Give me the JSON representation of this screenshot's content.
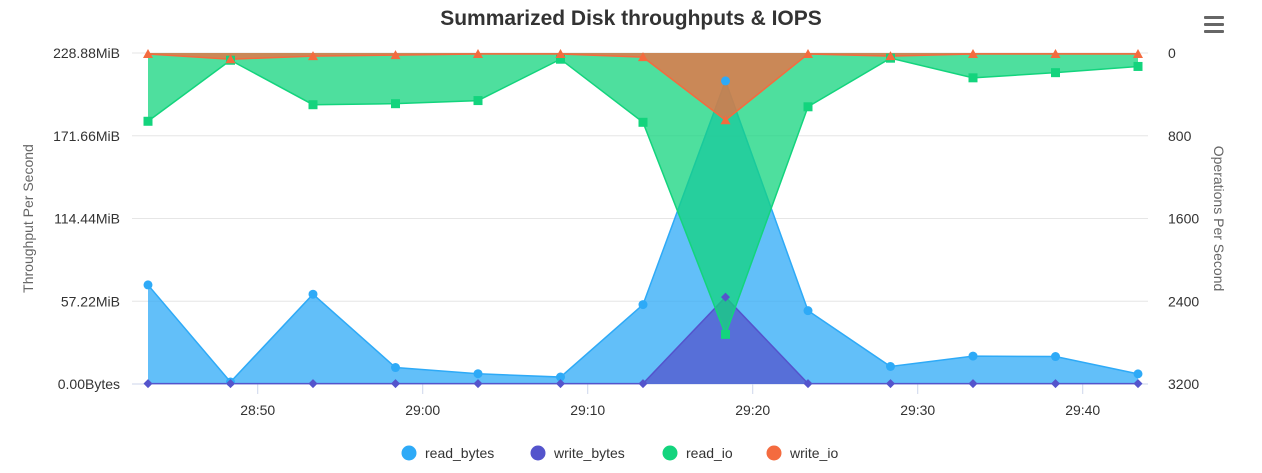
{
  "chart_data": {
    "type": "area",
    "title": "Summarized Disk throughputs & IOPS",
    "y_left_label": "Throughput Per Second",
    "y_right_label": "Operations Per Second",
    "x_labels": [
      "28:50",
      "29:00",
      "29:10",
      "29:20",
      "29:30",
      "29:40"
    ],
    "x_label_positions": [
      1.33,
      3.33,
      5.33,
      7.33,
      9.33,
      11.33
    ],
    "y_left_ticks": [
      "0.00Bytes",
      "57.22MiB",
      "114.44MiB",
      "171.66MiB",
      "228.88MiB"
    ],
    "y_left_range": [
      0,
      228.88
    ],
    "y_right_ticks": [
      "0",
      "800",
      "1600",
      "2400",
      "3200"
    ],
    "y_right_range": [
      0,
      3200
    ],
    "y_right_reversed": true,
    "grid": true,
    "legend_position": "bottom",
    "series": [
      {
        "name": "read_bytes",
        "axis": "left",
        "color": "#2eaaf7",
        "marker": "circle",
        "values": [
          68.5,
          1.4,
          62.1,
          11.4,
          7.1,
          4.8,
          54.9,
          209.6,
          50.7,
          12.1,
          19.3,
          19.0,
          7.0
        ]
      },
      {
        "name": "write_bytes",
        "axis": "left",
        "color": "#5454cc",
        "marker": "diamond",
        "values": [
          0.3,
          0.3,
          0.3,
          0.3,
          0.3,
          0.3,
          0.3,
          60.1,
          0.3,
          0.3,
          0.3,
          0.3,
          0.3
        ]
      },
      {
        "name": "read_io",
        "axis": "right",
        "color": "#13d47d",
        "marker": "square",
        "values": [
          660,
          70,
          500,
          490,
          460,
          60,
          670,
          2720,
          520,
          50,
          240,
          190,
          130
        ]
      },
      {
        "name": "write_io",
        "axis": "right",
        "color": "#f46b3f",
        "marker": "triangle",
        "values": [
          10,
          60,
          30,
          20,
          10,
          10,
          40,
          650,
          10,
          30,
          10,
          10,
          10
        ]
      }
    ]
  }
}
